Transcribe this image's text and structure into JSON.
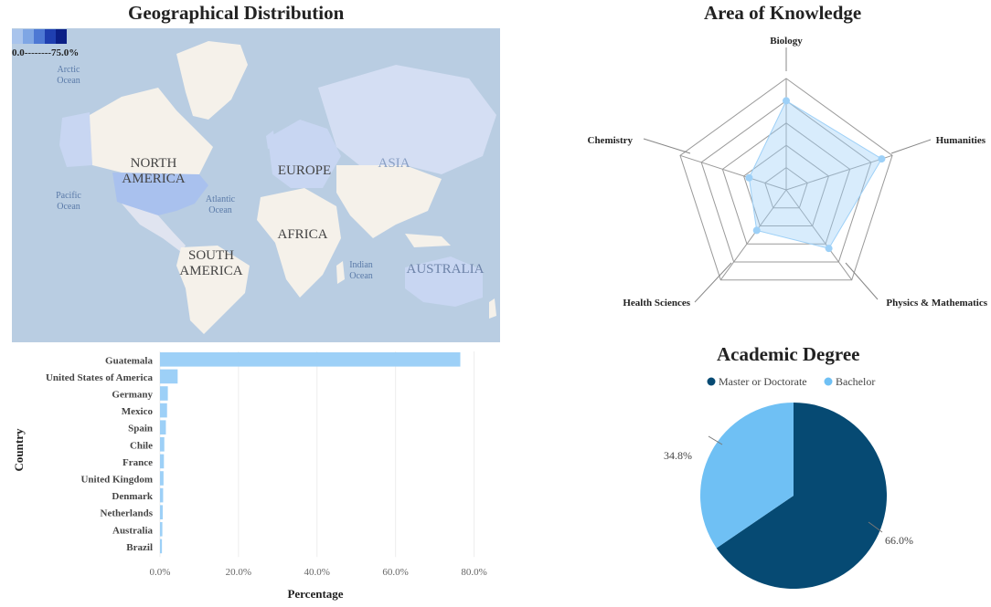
{
  "map": {
    "title": "Geographical Distribution",
    "legend_text": "0.0--------75.0%",
    "legend_colors": [
      "#a9c4ec",
      "#7fa6e4",
      "#4d78d4",
      "#1f3fb0",
      "#0b1f86"
    ],
    "labels": {
      "arctic": "Arctic\nOcean",
      "north_america": "NORTH\nAMERICA",
      "europe": "EUROPE",
      "asia": "ASIA",
      "pacific": "Pacific\nOcean",
      "atlantic": "Atlantic\nOcean",
      "africa": "AFRICA",
      "south_america": "SOUTH\nAMERICA",
      "indian": "Indian\nOcean",
      "australia": "AUSTRALIA"
    },
    "colors": {
      "ocean": "#b9cde2",
      "land": "#f5f1ea",
      "highlight": "#c8d6f2",
      "us": "#a9c1ee"
    }
  },
  "chart_data": [
    {
      "type": "bar",
      "orientation": "horizontal",
      "categories": [
        "Guatemala",
        "United States of America",
        "Germany",
        "Mexico",
        "Spain",
        "Chile",
        "France",
        "United Kingdom",
        "Denmark",
        "Netherlands",
        "Australia",
        "Brazil"
      ],
      "values": [
        76.5,
        4.5,
        2.0,
        1.8,
        1.5,
        1.1,
        1.0,
        0.9,
        0.8,
        0.7,
        0.6,
        0.5
      ],
      "xlabel": "Percentage",
      "ylabel": "Country",
      "xticks": [
        "0.0%",
        "20.0%",
        "40.0%",
        "60.0%",
        "80.0%"
      ],
      "xlim": [
        0,
        85
      ],
      "color": "#9dd0f7"
    },
    {
      "type": "radar",
      "title": "Area of Knowledge",
      "axes": [
        "Biology",
        "Humanities",
        "Physics & Mathematics",
        "Health  Sciences",
        "Chemistry"
      ],
      "values": [
        0.8,
        0.9,
        0.65,
        0.45,
        0.35
      ],
      "levels": 5,
      "color": "#9dd0f7"
    },
    {
      "type": "pie",
      "title": "Academic Degree",
      "labels": [
        "Master  or  Doctorate",
        "Bachelor"
      ],
      "values": [
        66.0,
        34.8
      ],
      "value_labels": [
        "66.0%",
        "34.8%"
      ],
      "colors": [
        "#064a73",
        "#6fc0f4"
      ]
    }
  ]
}
